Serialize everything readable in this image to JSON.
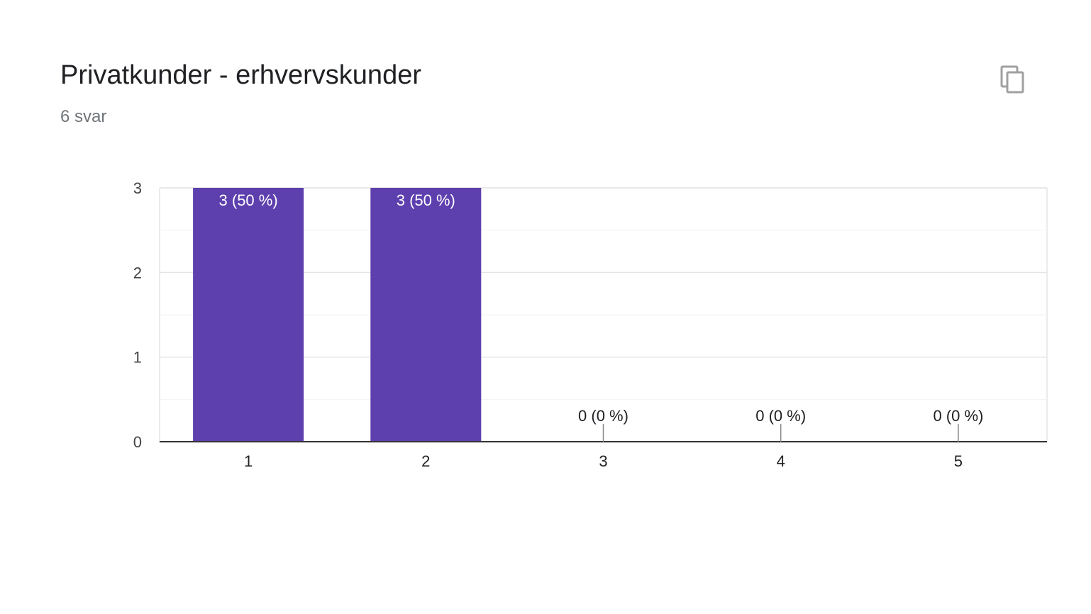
{
  "card": {
    "title": "Privatkunder - erhvervskunder",
    "response_count": "6 svar",
    "copy_icon": "copy-icon"
  },
  "chart_data": {
    "type": "bar",
    "title": "",
    "xlabel": "",
    "ylabel": "",
    "categories": [
      "1",
      "2",
      "3",
      "4",
      "5"
    ],
    "values": [
      3,
      3,
      0,
      0,
      0
    ],
    "data_labels": [
      "3 (50 %)",
      "3 (50 %)",
      "0 (0 %)",
      "0 (0 %)",
      "0 (0 %)"
    ],
    "ylim": [
      0,
      3
    ],
    "yticks": [
      "0",
      "1",
      "2",
      "3"
    ],
    "grid": true,
    "legend": "none",
    "bar_color": "#5e3fae",
    "inside_label_color": "#ffffff",
    "outside_label_color": "#202124"
  }
}
